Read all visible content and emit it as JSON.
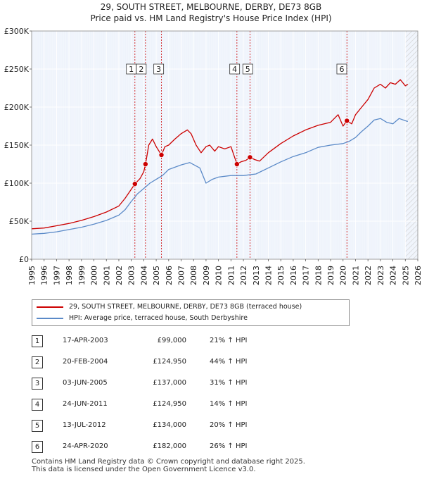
{
  "title": {
    "line1": "29, SOUTH STREET, MELBOURNE, DERBY, DE73 8GB",
    "line2": "Price paid vs. HM Land Registry's House Price Index (HPI)"
  },
  "legend": {
    "property_label": "29, SOUTH STREET, MELBOURNE, DERBY, DE73 8GB (terraced house)",
    "hpi_label": "HPI: Average price, terraced house, South Derbyshire"
  },
  "sales": [
    {
      "num": "1",
      "date": "17-APR-2003",
      "price": "£99,000",
      "hpi": "21% ↑ HPI"
    },
    {
      "num": "2",
      "date": "20-FEB-2004",
      "price": "£124,950",
      "hpi": "44% ↑ HPI"
    },
    {
      "num": "3",
      "date": "03-JUN-2005",
      "price": "£137,000",
      "hpi": "31% ↑ HPI"
    },
    {
      "num": "4",
      "date": "24-JUN-2011",
      "price": "£124,950",
      "hpi": "14% ↑ HPI"
    },
    {
      "num": "5",
      "date": "13-JUL-2012",
      "price": "£134,000",
      "hpi": "20% ↑ HPI"
    },
    {
      "num": "6",
      "date": "24-APR-2020",
      "price": "£182,000",
      "hpi": "26% ↑ HPI"
    }
  ],
  "footer": {
    "line1": "Contains HM Land Registry data © Crown copyright and database right 2025.",
    "line2": "This data is licensed under the Open Government Licence v3.0."
  },
  "colors": {
    "property": "#cc0000",
    "hpi": "#5b8ac8",
    "plot_bg": "#eef3fb",
    "grid": "#ffffff",
    "hatch": "#c8c8c8"
  },
  "chart_data": {
    "type": "line",
    "xlim": [
      1995,
      2026
    ],
    "ylim": [
      0,
      300000
    ],
    "x_ticks": [
      "1995",
      "1996",
      "1997",
      "1998",
      "1999",
      "2000",
      "2001",
      "2002",
      "2003",
      "2004",
      "2005",
      "2006",
      "2007",
      "2008",
      "2009",
      "2010",
      "2011",
      "2012",
      "2013",
      "2014",
      "2015",
      "2016",
      "2017",
      "2018",
      "2019",
      "2020",
      "2021",
      "2022",
      "2023",
      "2024",
      "2025",
      "2026"
    ],
    "y_ticks": [
      {
        "value": 0,
        "label": "£0"
      },
      {
        "value": 50000,
        "label": "£50K"
      },
      {
        "value": 100000,
        "label": "£100K"
      },
      {
        "value": 150000,
        "label": "£150K"
      },
      {
        "value": 200000,
        "label": "£200K"
      },
      {
        "value": 250000,
        "label": "£250K"
      },
      {
        "value": 300000,
        "label": "£300K"
      }
    ],
    "forecast_from": 2025.0,
    "series": [
      {
        "name": "29, SOUTH STREET, MELBOURNE, DERBY, DE73 8GB (terraced house)",
        "x": [
          1995.0,
          1996.0,
          1997.0,
          1998.0,
          1999.0,
          2000.0,
          2001.0,
          2002.0,
          2002.5,
          2003.0,
          2003.29,
          2003.7,
          2004.0,
          2004.14,
          2004.4,
          2004.7,
          2005.0,
          2005.42,
          2005.7,
          2006.0,
          2006.5,
          2007.0,
          2007.5,
          2007.8,
          2008.2,
          2008.6,
          2009.0,
          2009.3,
          2009.7,
          2010.0,
          2010.5,
          2011.0,
          2011.48,
          2011.8,
          2012.2,
          2012.53,
          2012.9,
          2013.3,
          2014.0,
          2015.0,
          2016.0,
          2017.0,
          2018.0,
          2019.0,
          2019.6,
          2020.0,
          2020.31,
          2020.7,
          2021.0,
          2021.5,
          2022.0,
          2022.5,
          2023.0,
          2023.4,
          2023.8,
          2024.2,
          2024.6,
          2025.0,
          2025.2
        ],
        "y": [
          40000,
          41000,
          44000,
          47000,
          51000,
          56000,
          62000,
          70000,
          80000,
          92000,
          99000,
          106000,
          115000,
          124950,
          150000,
          158000,
          148000,
          137000,
          148000,
          150000,
          158000,
          165000,
          170000,
          165000,
          150000,
          140000,
          148000,
          150000,
          142000,
          148000,
          145000,
          148000,
          124950,
          128000,
          130000,
          134000,
          131000,
          129000,
          140000,
          152000,
          162000,
          170000,
          176000,
          180000,
          190000,
          175000,
          182000,
          178000,
          190000,
          200000,
          210000,
          225000,
          230000,
          225000,
          232000,
          230000,
          236000,
          228000,
          230000
        ]
      },
      {
        "name": "HPI: Average price, terraced house, South Derbyshire",
        "x": [
          1995.0,
          1996.0,
          1997.0,
          1998.0,
          1999.0,
          2000.0,
          2001.0,
          2002.0,
          2002.5,
          2003.0,
          2003.5,
          2004.0,
          2004.5,
          2005.0,
          2005.5,
          2006.0,
          2007.0,
          2007.7,
          2008.5,
          2009.0,
          2009.5,
          2010.0,
          2011.0,
          2012.0,
          2013.0,
          2014.0,
          2015.0,
          2016.0,
          2017.0,
          2018.0,
          2019.0,
          2020.0,
          2020.5,
          2021.0,
          2021.5,
          2022.0,
          2022.5,
          2023.0,
          2023.5,
          2024.0,
          2024.5,
          2025.0,
          2025.2
        ],
        "y": [
          33000,
          34000,
          36000,
          39000,
          42000,
          46000,
          51000,
          58000,
          65000,
          76000,
          86000,
          93000,
          100000,
          105000,
          110000,
          118000,
          124000,
          127000,
          120000,
          100000,
          105000,
          108000,
          110000,
          110000,
          112000,
          120000,
          128000,
          135000,
          140000,
          147000,
          150000,
          152000,
          155000,
          160000,
          168000,
          175000,
          183000,
          185000,
          180000,
          178000,
          185000,
          182000,
          181000
        ]
      }
    ],
    "sale_points": [
      {
        "label": "1",
        "x": 2003.29,
        "y": 99000
      },
      {
        "label": "2",
        "x": 2004.14,
        "y": 124950
      },
      {
        "label": "3",
        "x": 2005.42,
        "y": 137000
      },
      {
        "label": "4",
        "x": 2011.48,
        "y": 124950
      },
      {
        "label": "5",
        "x": 2012.53,
        "y": 134000
      },
      {
        "label": "6",
        "x": 2020.31,
        "y": 182000
      }
    ],
    "marker_label_positions": [
      {
        "label": "1",
        "x": 2003.0
      },
      {
        "label": "2",
        "x": 2003.8
      },
      {
        "label": "3",
        "x": 2005.2
      },
      {
        "label": "4",
        "x": 2011.3
      },
      {
        "label": "5",
        "x": 2012.35
      },
      {
        "label": "6",
        "x": 2019.9
      }
    ]
  }
}
